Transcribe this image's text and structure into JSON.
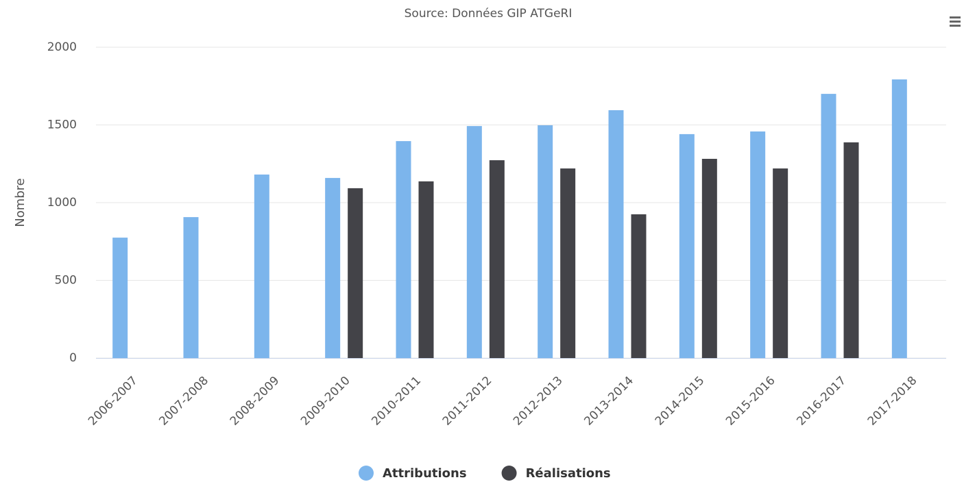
{
  "chart_data": {
    "type": "bar",
    "subtitle": "Source: Données GIP ATGeRI",
    "y_label": "Nombre",
    "categories": [
      "2006-2007",
      "2007-2008",
      "2008-2009",
      "2009-2010",
      "2010-2011",
      "2011-2012",
      "2012-2013",
      "2013-2014",
      "2014-2015",
      "2015-2016",
      "2016-2017",
      "2017-2018"
    ],
    "series": [
      {
        "name": "Attributions",
        "color": "#7cb5ec",
        "values": [
          775,
          907,
          1181,
          1159,
          1396,
          1493,
          1498,
          1595,
          1441,
          1458,
          1700,
          1793
        ]
      },
      {
        "name": "Réalisations",
        "color": "#434348",
        "values": [
          null,
          null,
          null,
          1093,
          1137,
          1273,
          1220,
          925,
          1282,
          1220,
          1388,
          null
        ]
      }
    ],
    "ylim": [
      0,
      2000
    ],
    "yticks": [
      0,
      500,
      1000,
      1500,
      2000
    ],
    "grid": true,
    "legend": "bottom"
  }
}
